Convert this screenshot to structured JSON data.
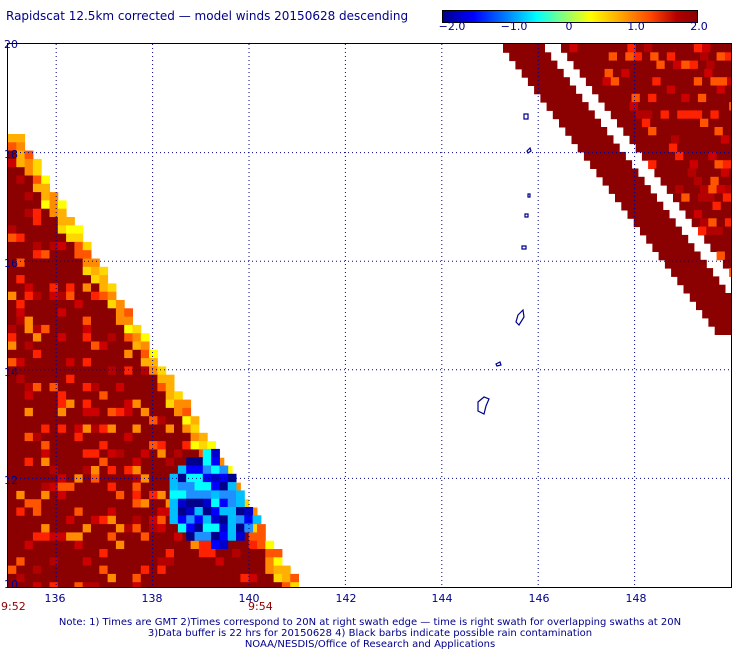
{
  "title": "Rapidscat 12.5km corrected — model winds 20150628 descending",
  "colorbar": {
    "ticks": [
      "−2.0",
      "−1.0",
      "0",
      "1.0",
      "2.0"
    ],
    "range": [
      -2.0,
      2.0
    ]
  },
  "map": {
    "lon_labels": [
      "136",
      "138",
      "140",
      "142",
      "144",
      "146",
      "148"
    ],
    "lat_labels": [
      "20",
      "18",
      "16",
      "14",
      "12",
      "10"
    ],
    "lon_range": [
      135,
      150
    ],
    "lat_range": [
      10,
      20
    ],
    "gridlines": true,
    "colors": {
      "grid": "#00008b",
      "land": "#00008b",
      "dark_red": "#8b0000"
    }
  },
  "time_labels": {
    "left": "9:52",
    "right": "9:54"
  },
  "notes": [
    "Note: 1) Times are GMT 2)Times correspond to 20N at right swath edge — time is right swath for overlapping swaths at 20N",
    "3)Data buffer is 22 hrs for 20150628 4) Black barbs indicate possible rain contamination",
    "NOAA/NESDIS/Office of Research and Applications"
  ]
}
